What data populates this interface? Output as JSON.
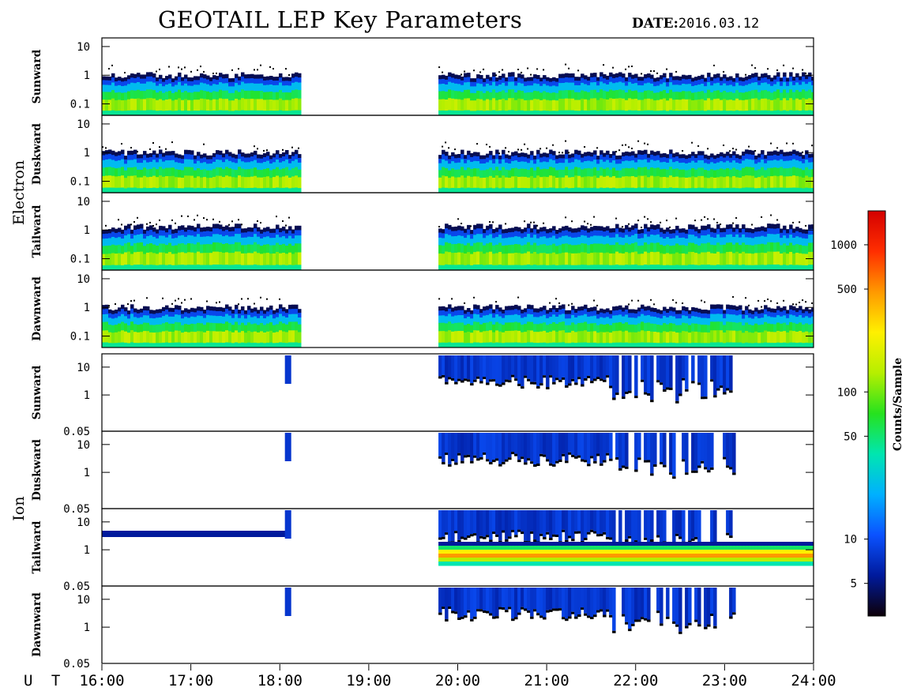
{
  "chart_data": {
    "type": "heatmap",
    "title": "GEOTAIL LEP Key Parameters",
    "date_label": "DATE:",
    "date_value": "2016.03.12",
    "x_axis": {
      "label": "U T",
      "range": [
        "16:00",
        "24:00"
      ],
      "tick_labels": [
        "16:00",
        "17:00",
        "18:00",
        "19:00",
        "20:00",
        "21:00",
        "22:00",
        "23:00",
        "24:00"
      ]
    },
    "groups": [
      {
        "name": "Electron",
        "y_scale": "log",
        "y_range": [
          0.04,
          20
        ],
        "y_tick_labels": [
          "10",
          "1",
          "0.1"
        ],
        "panels": [
          {
            "name": "Sunward",
            "data_gaps": [
              [
                "18:13",
                "19:47"
              ]
            ],
            "top_edge": [
              1.0,
              1.0
            ]
          },
          {
            "name": "Duskward",
            "data_gaps": [
              [
                "18:13",
                "19:47"
              ]
            ],
            "top_edge": [
              1.0,
              1.0
            ]
          },
          {
            "name": "Tailward",
            "data_gaps": [
              [
                "18:13",
                "19:47"
              ]
            ],
            "top_edge": [
              1.3,
              1.3
            ]
          },
          {
            "name": "Dawnward",
            "data_gaps": [
              [
                "18:13",
                "19:47"
              ]
            ],
            "top_edge": [
              1.0,
              1.0
            ]
          }
        ]
      },
      {
        "name": "Ion",
        "y_scale": "log",
        "y_range": [
          0.05,
          30
        ],
        "y_tick_labels": [
          "10",
          "1",
          "0.05"
        ],
        "panels": [
          {
            "name": "Sunward",
            "data_gaps": [
              [
                "18:13",
                "19:47"
              ]
            ]
          },
          {
            "name": "Duskward",
            "data_gaps": [
              [
                "18:13",
                "19:47"
              ]
            ]
          },
          {
            "name": "Tailward",
            "data_gaps": [
              [
                "18:13",
                "19:47"
              ]
            ]
          },
          {
            "name": "Dawnward",
            "data_gaps": [
              [
                "18:13",
                "19:47"
              ]
            ]
          }
        ]
      }
    ],
    "colorbar": {
      "label": "Counts/Sample",
      "scale": "log",
      "range": [
        3,
        1700
      ],
      "tick_labels": [
        "1000",
        "500",
        "100",
        "50",
        "10",
        "5"
      ],
      "tick_values": [
        1000,
        500,
        100,
        50,
        10,
        5
      ],
      "colormap": [
        "#0d0008",
        "#001a9c",
        "#0b52ff",
        "#00b0ff",
        "#00e6b0",
        "#26e21e",
        "#b6ef00",
        "#fff000",
        "#ff9900",
        "#ff2e00",
        "#d40000"
      ]
    }
  }
}
